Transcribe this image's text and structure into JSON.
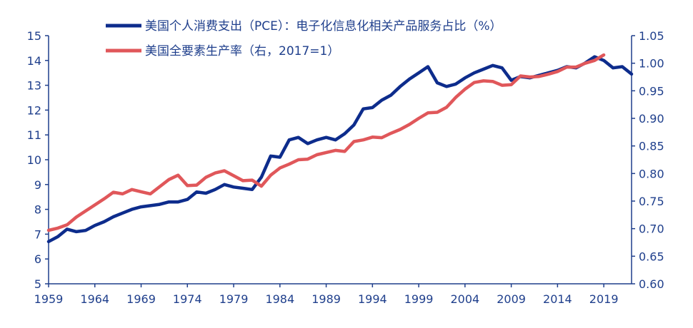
{
  "chart_data": {
    "type": "line",
    "title": "",
    "xlabel": "",
    "x_tick_labels": [
      "1959",
      "1964",
      "1969",
      "1974",
      "1979",
      "1984",
      "1989",
      "1994",
      "1999",
      "2004",
      "2009",
      "2014",
      "2019"
    ],
    "y_left": {
      "range": [
        5,
        15
      ],
      "ticks": [
        "5",
        "6",
        "7",
        "8",
        "9",
        "10",
        "11",
        "12",
        "13",
        "14",
        "15"
      ]
    },
    "y_right": {
      "range": [
        0.6,
        1.05
      ],
      "ticks": [
        "0.60",
        "0.65",
        "0.70",
        "0.75",
        "0.80",
        "0.85",
        "0.90",
        "0.95",
        "1.00",
        "1.05"
      ]
    },
    "grid": false,
    "legend_position": "top",
    "series": [
      {
        "name": "美国个人消费支出（PCE）：电子化信息化相关产品服务占比（%）",
        "color": "#0d2c8c",
        "axis": "left",
        "x": [
          1959,
          1960,
          1961,
          1962,
          1963,
          1964,
          1965,
          1966,
          1967,
          1968,
          1969,
          1970,
          1971,
          1972,
          1973,
          1974,
          1975,
          1976,
          1977,
          1978,
          1979,
          1980,
          1981,
          1982,
          1983,
          1984,
          1985,
          1986,
          1987,
          1988,
          1989,
          1990,
          1991,
          1992,
          1993,
          1994,
          1995,
          1996,
          1997,
          1998,
          1999,
          2000,
          2001,
          2002,
          2003,
          2004,
          2005,
          2006,
          2007,
          2008,
          2009,
          2010,
          2011,
          2012,
          2013,
          2014,
          2015,
          2016,
          2017,
          2018,
          2019,
          2020,
          2021,
          2022
        ],
        "values": [
          6.7,
          6.9,
          7.2,
          7.1,
          7.15,
          7.35,
          7.5,
          7.7,
          7.85,
          8.0,
          8.1,
          8.15,
          8.2,
          8.3,
          8.3,
          8.4,
          8.7,
          8.65,
          8.8,
          9.0,
          8.9,
          8.85,
          8.8,
          9.3,
          10.15,
          10.1,
          10.8,
          10.9,
          10.65,
          10.8,
          10.9,
          10.8,
          11.05,
          11.4,
          12.05,
          12.1,
          12.4,
          12.6,
          12.95,
          13.25,
          13.5,
          13.75,
          13.1,
          12.95,
          13.05,
          13.3,
          13.5,
          13.65,
          13.8,
          13.7,
          13.2,
          13.35,
          13.3,
          13.4,
          13.5,
          13.6,
          13.75,
          13.7,
          13.9,
          14.15,
          14.0,
          13.7,
          13.75,
          13.45
        ]
      },
      {
        "name": "美国全要素生产率（右，2017=1）",
        "color": "#e0575a",
        "axis": "right",
        "x": [
          1959,
          1960,
          1961,
          1962,
          1963,
          1964,
          1965,
          1966,
          1967,
          1968,
          1969,
          1970,
          1971,
          1972,
          1973,
          1974,
          1975,
          1976,
          1977,
          1978,
          1979,
          1980,
          1981,
          1982,
          1983,
          1984,
          1985,
          1986,
          1987,
          1988,
          1989,
          1990,
          1991,
          1992,
          1993,
          1994,
          1995,
          1996,
          1997,
          1998,
          1999,
          2000,
          2001,
          2002,
          2003,
          2004,
          2005,
          2006,
          2007,
          2008,
          2009,
          2010,
          2011,
          2012,
          2013,
          2014,
          2015,
          2016,
          2017,
          2018,
          2019
        ],
        "values": [
          0.697,
          0.701,
          0.707,
          0.721,
          0.732,
          0.743,
          0.754,
          0.766,
          0.763,
          0.771,
          0.767,
          0.763,
          0.776,
          0.789,
          0.797,
          0.778,
          0.779,
          0.793,
          0.801,
          0.805,
          0.796,
          0.787,
          0.788,
          0.777,
          0.797,
          0.81,
          0.817,
          0.825,
          0.826,
          0.834,
          0.838,
          0.842,
          0.84,
          0.858,
          0.861,
          0.866,
          0.865,
          0.873,
          0.88,
          0.889,
          0.9,
          0.91,
          0.911,
          0.92,
          0.938,
          0.953,
          0.965,
          0.968,
          0.967,
          0.96,
          0.961,
          0.977,
          0.975,
          0.976,
          0.98,
          0.985,
          0.993,
          0.993,
          1.0,
          1.005,
          1.015
        ]
      }
    ]
  }
}
